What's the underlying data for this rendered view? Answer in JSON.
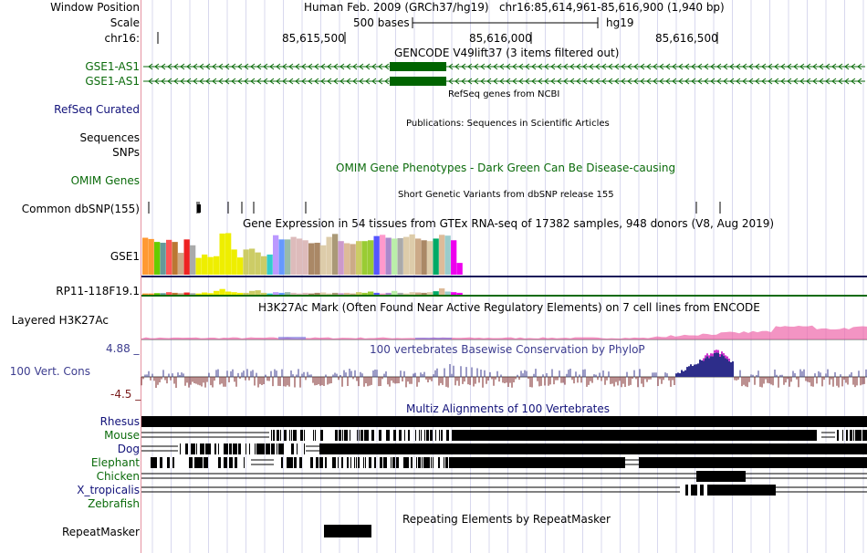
{
  "header": {
    "window_position_label": "Window Position",
    "window_position_value": "Human Feb. 2009 (GRCh37/hg19)   chr16:85,614,961-85,616,900 (1,940 bp)",
    "scale_label": "Scale",
    "scale_value": "500 bases",
    "assembly": "hg19",
    "chrom_label": "chr16:",
    "ticks": [
      "85,615,500",
      "85,616,000",
      "85,616,500"
    ]
  },
  "tracks": {
    "gencode": {
      "title": "GENCODE V49lift37 (3 items filtered out)",
      "items": [
        "GSE1-AS1",
        "GSE1-AS1"
      ]
    },
    "refseq": {
      "title": "RefSeq genes from NCBI",
      "label": "RefSeq Curated"
    },
    "publications": {
      "title": "Publications: Sequences in Scientific Articles",
      "labels": [
        "Sequences",
        "SNPs"
      ]
    },
    "omim": {
      "title": "OMIM Gene Phenotypes - Dark Green Can Be Disease-causing",
      "label": "OMIM Genes"
    },
    "dbsnp": {
      "title": "Short Genetic Variants from dbSNP release 155",
      "label": "Common dbSNP(155)"
    },
    "gtex": {
      "title": "Gene Expression in 54 tissues from GTEx RNA-seq of 17382 samples, 948 donors (V8, Aug 2019)",
      "genes": [
        "GSE1",
        "RP11-118F19.1"
      ]
    },
    "h3k27ac": {
      "title": "H3K27Ac Mark (Often Found Near Active Regulatory Elements) on 7 cell lines from ENCODE",
      "label": "Layered H3K27Ac"
    },
    "phylop": {
      "title": "100 vertebrates Basewise Conservation by PhyloP",
      "label": "100 Vert. Cons",
      "max": "4.88 _",
      "min": "-4.5 _"
    },
    "multiz": {
      "title": "Multiz Alignments of 100 Vertebrates",
      "species": [
        "Rhesus",
        "Mouse",
        "Dog",
        "Elephant",
        "Chicken",
        "X_tropicalis",
        "Zebrafish"
      ]
    },
    "repeatmasker": {
      "title": "Repeating Elements by RepeatMasker",
      "label": "RepeatMasker"
    }
  },
  "gtex_data": {
    "gse1_heights": [
      0.88,
      0.85,
      0.78,
      0.76,
      0.83,
      0.78,
      0.52,
      0.84,
      0.7,
      0.4,
      0.48,
      0.42,
      0.44,
      0.98,
      0.99,
      0.6,
      0.41,
      0.6,
      0.62,
      0.53,
      0.44,
      0.48,
      0.94,
      0.84,
      0.84,
      0.9,
      0.86,
      0.82,
      0.75,
      0.76,
      0.7,
      0.9,
      0.97,
      0.8,
      0.75,
      0.73,
      0.8,
      0.8,
      0.82,
      0.92,
      0.95,
      0.88,
      0.86,
      0.87,
      0.9,
      0.96,
      0.86,
      0.82,
      0.8,
      0.86,
      0.95,
      0.93,
      0.82,
      0.28
    ],
    "rp11_heights": [
      0.2,
      0.2,
      0.25,
      0.25,
      0.4,
      0.3,
      0.25,
      0.35,
      0.25,
      0.2,
      0.35,
      0.25,
      0.6,
      0.9,
      0.5,
      0.4,
      0.3,
      0.3,
      0.6,
      0.7,
      0.3,
      0.2,
      0.4,
      0.3,
      0.4,
      0.3,
      0.2,
      0.3,
      0.2,
      0.3,
      0.35,
      0.2,
      0.3,
      0.25,
      0.3,
      0.2,
      0.4,
      0.3,
      0.5,
      0.3,
      0.2,
      0.3,
      0.6,
      0.3,
      0.2,
      0.4,
      0.35,
      0.3,
      0.4,
      0.55,
      1.0,
      0.5,
      0.4,
      0.3
    ],
    "colors": [
      "#FF9933",
      "#FF9933",
      "#66CC00",
      "#669999",
      "#FF5555",
      "#BB7733",
      "#CCAA88",
      "#EE2222",
      "#AAAAAA",
      "#EEEE00",
      "#EEEE00",
      "#EEEE00",
      "#EEEE00",
      "#EEEE00",
      "#EEEE00",
      "#EEEE00",
      "#EEEE00",
      "#CCCC66",
      "#CCCC66",
      "#CCCC66",
      "#CCCC66",
      "#33CCCC",
      "#BB99FF",
      "#6699FF",
      "#99BBAA",
      "#DDBBBB",
      "#DDBBBB",
      "#DDBBBB",
      "#AA8866",
      "#AA8866",
      "#DDCCAA",
      "#DDCCAA",
      "#AA9977",
      "#CC99CC",
      "#DDBB99",
      "#CCAA88",
      "#CCCC66",
      "#99CC33",
      "#99CC33",
      "#5555FF",
      "#FF99CC",
      "#AA88CC",
      "#BBEEAA",
      "#AAAAAA",
      "#DDCCAA",
      "#DDCCAA",
      "#CCAA88",
      "#AA8866",
      "#DDCCAA",
      "#00AA66",
      "#DDBB99",
      "#99CCCC",
      "#EE00EE",
      "#EE00EE"
    ]
  }
}
